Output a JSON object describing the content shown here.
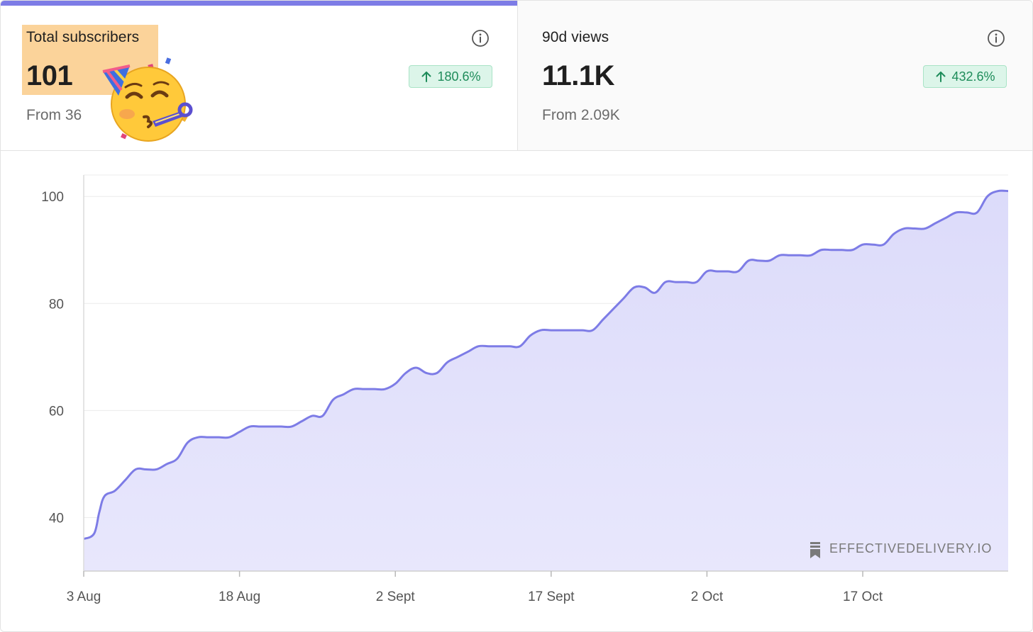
{
  "tabs": {
    "subscribers": {
      "label": "Total subscribers",
      "value": "101",
      "from": "From 36",
      "change": "180.6%",
      "active": true
    },
    "views": {
      "label": "90d views",
      "value": "11.1K",
      "from": "From 2.09K",
      "change": "432.6%",
      "active": false
    }
  },
  "colors": {
    "accent": "#7d7ce6",
    "area_fill": "#e3e2fb",
    "highlight": "#fbd39a",
    "badge_bg": "#dcf5e9",
    "badge_text": "#1e8c5a"
  },
  "icons": {
    "info": "info-circle-icon",
    "up_arrow": "arrow-up-icon",
    "emoji": "partying-face-emoji",
    "watermark": "bookmark-icon"
  },
  "watermark": "EFFECTIVEDELIVERY.IO",
  "chart_data": {
    "type": "area",
    "title": "Total subscribers",
    "xlabel": "",
    "ylabel": "",
    "ylim": [
      30,
      104
    ],
    "grid": true,
    "yticks": [
      40,
      60,
      80,
      100
    ],
    "ytick_labels": [
      "40",
      "60",
      "80",
      "100"
    ],
    "xticks": [
      0,
      15,
      30,
      45,
      60,
      75
    ],
    "xtick_labels": [
      "3 Aug",
      "18 Aug",
      "2 Sept",
      "17 Sept",
      "2 Oct",
      "17 Oct"
    ],
    "xlim": [
      0,
      89
    ],
    "series": [
      {
        "name": "Subscribers",
        "x": [
          0,
          1,
          1.5,
          2,
          3,
          4,
          5,
          6,
          7,
          8,
          9,
          10,
          11,
          12,
          13,
          14,
          15,
          16,
          17,
          18,
          19,
          20,
          21,
          22,
          23,
          24,
          25,
          26,
          27,
          28,
          29,
          30,
          31,
          32,
          33,
          34,
          35,
          36,
          37,
          38,
          39,
          40,
          41,
          42,
          43,
          44,
          45,
          46,
          47,
          48,
          49,
          50,
          51,
          52,
          53,
          54,
          55,
          56,
          57,
          58,
          59,
          60,
          61,
          62,
          63,
          64,
          65,
          66,
          67,
          68,
          69,
          70,
          71,
          72,
          73,
          74,
          75,
          76,
          77,
          78,
          79,
          80,
          81,
          82,
          83,
          84,
          85,
          86,
          87,
          88,
          89
        ],
        "values": [
          36,
          37,
          41,
          44,
          45,
          47,
          49,
          49,
          49,
          50,
          51,
          54,
          55,
          55,
          55,
          55,
          56,
          57,
          57,
          57,
          57,
          57,
          58,
          59,
          59,
          62,
          63,
          64,
          64,
          64,
          64,
          65,
          67,
          68,
          67,
          67,
          69,
          70,
          71,
          72,
          72,
          72,
          72,
          72,
          74,
          75,
          75,
          75,
          75,
          75,
          75,
          77,
          79,
          81,
          83,
          83,
          82,
          84,
          84,
          84,
          84,
          86,
          86,
          86,
          86,
          88,
          88,
          88,
          89,
          89,
          89,
          89,
          90,
          90,
          90,
          90,
          91,
          91,
          91,
          93,
          94,
          94,
          94,
          95,
          96,
          97,
          97,
          97,
          100,
          101,
          101
        ]
      }
    ]
  }
}
